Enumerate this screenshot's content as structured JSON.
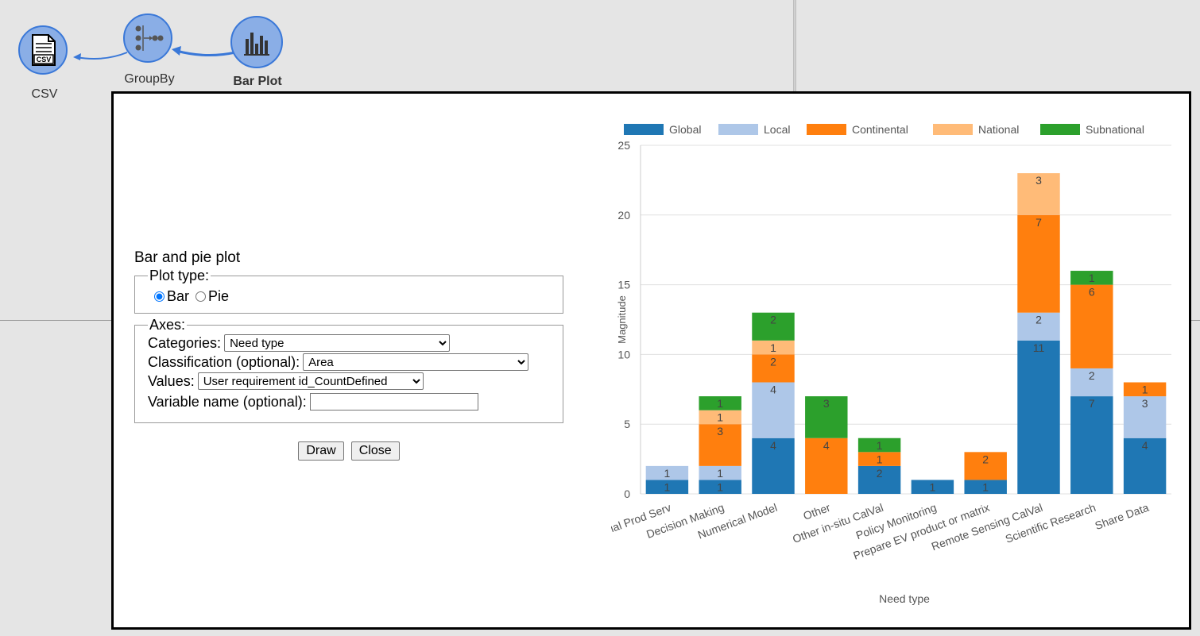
{
  "colors": {
    "accent": "#3a78d8",
    "node_fill": "#8aaee6"
  },
  "workflow": {
    "nodes": [
      {
        "id": "csv",
        "label": "CSV",
        "icon": "csv-file-icon"
      },
      {
        "id": "groupby",
        "label": "GroupBy",
        "icon": "groupby-icon"
      },
      {
        "id": "barplot",
        "label": "Bar Plot",
        "icon": "bar-chart-icon"
      }
    ]
  },
  "dialog": {
    "title": "Bar and pie plot",
    "plot_type_legend": "Plot type:",
    "plot_type_options": [
      "Bar",
      "Pie"
    ],
    "plot_type_selected": "Bar",
    "axes_legend": "Axes:",
    "categories_label": "Categories:",
    "categories_value": "Need type",
    "classification_label": "Classification (optional):",
    "classification_value": "Area",
    "values_label": "Values:",
    "values_value": "User requirement id_CountDefined",
    "variable_label": "Variable name (optional):",
    "variable_value": "",
    "draw_label": "Draw",
    "close_label": "Close"
  },
  "chart_data": {
    "type": "bar",
    "stacked": true,
    "categories": [
      "Commercial Prod Serv",
      "Decision Making",
      "Numerical Model",
      "Other",
      "Other in-situ CalVal",
      "Policy Monitoring",
      "Prepare EV product or matrix",
      "Remote Sensing CalVal",
      "Scientific Research",
      "Share Data"
    ],
    "series": [
      {
        "name": "Global",
        "color": "#1f77b4",
        "values": [
          1,
          1,
          4,
          0,
          2,
          1,
          1,
          11,
          7,
          4
        ]
      },
      {
        "name": "Local",
        "color": "#aec7e8",
        "values": [
          1,
          1,
          4,
          0,
          0,
          0,
          0,
          2,
          2,
          3
        ]
      },
      {
        "name": "Continental",
        "color": "#ff7f0e",
        "values": [
          0,
          3,
          2,
          4,
          1,
          0,
          2,
          7,
          6,
          1
        ]
      },
      {
        "name": "National",
        "color": "#ffbb78",
        "values": [
          0,
          1,
          1,
          0,
          0,
          0,
          0,
          3,
          0,
          0
        ]
      },
      {
        "name": "Subnational",
        "color": "#2ca02c",
        "values": [
          0,
          1,
          2,
          3,
          1,
          0,
          0,
          0,
          1,
          0
        ]
      }
    ],
    "xlabel": "Need type",
    "ylabel": "Magnitude",
    "ylim": [
      0,
      25
    ],
    "yticks": [
      0,
      5,
      10,
      15,
      20,
      25
    ],
    "legend_position": "top",
    "grid": true
  }
}
